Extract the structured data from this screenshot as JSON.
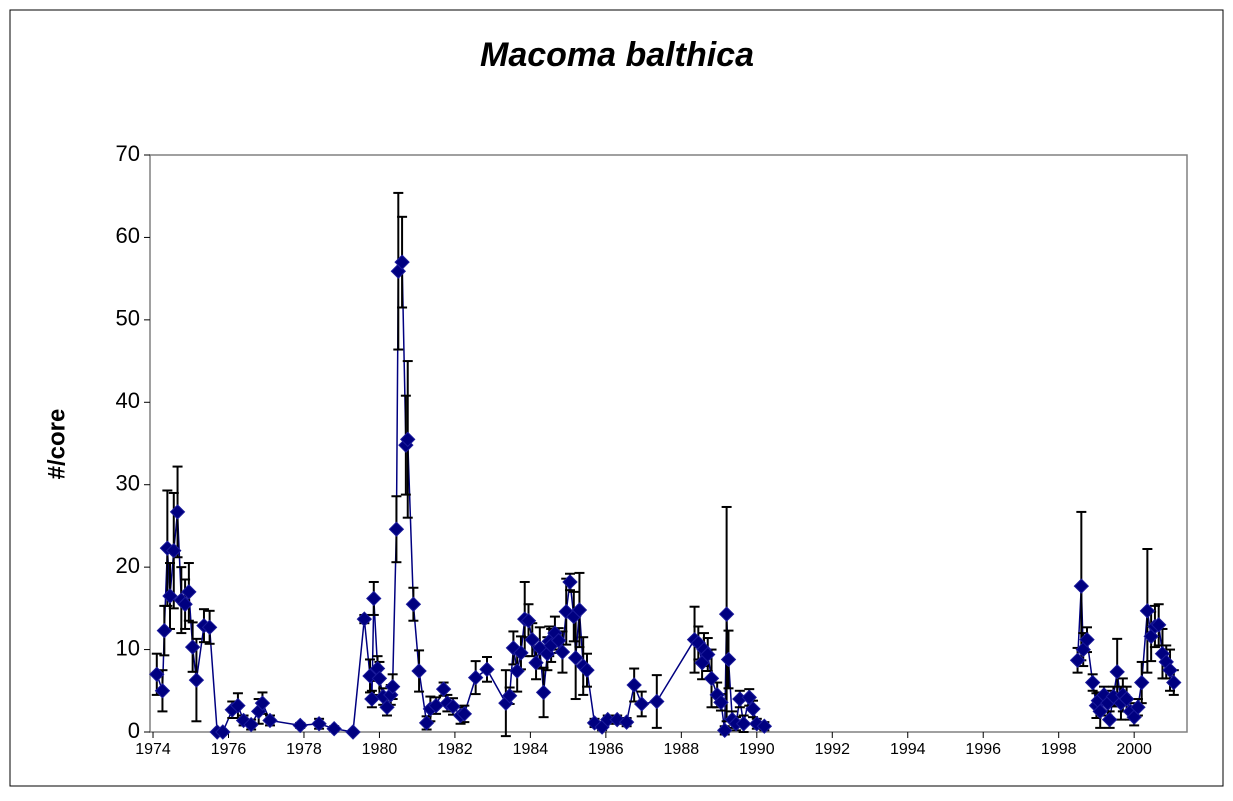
{
  "chart_data": {
    "type": "line",
    "title": "Macoma balthica",
    "y_label": "#/core",
    "color": "#000080",
    "xlim": [
      1973.92,
      2001.4
    ],
    "ylim": [
      0,
      70
    ],
    "xticks": [
      1974,
      1976,
      1978,
      1980,
      1982,
      1984,
      1986,
      1988,
      1990,
      1992,
      1994,
      1996,
      1998,
      2000
    ],
    "yticks": [
      0,
      10,
      20,
      30,
      40,
      50,
      60,
      70
    ],
    "x": [
      1974.1,
      1974.25,
      1974.3,
      1974.38,
      1974.45,
      1974.55,
      1974.65,
      1974.75,
      1974.85,
      1974.95,
      1975.05,
      1975.15,
      1975.35,
      1975.5,
      1975.7,
      1975.85,
      1976.1,
      1976.25,
      1976.4,
      1976.6,
      1976.8,
      1976.9,
      1977.1,
      1977.9,
      1978.4,
      1978.8,
      1979.3,
      1979.6,
      1979.75,
      1979.8,
      1979.85,
      1979.95,
      1980.0,
      1980.1,
      1980.2,
      1980.3,
      1980.35,
      1980.45,
      1980.5,
      1980.6,
      1980.7,
      1980.75,
      1980.9,
      1981.05,
      1981.25,
      1981.35,
      1981.5,
      1981.7,
      1981.8,
      1981.95,
      1982.15,
      1982.25,
      1982.55,
      1982.85,
      1983.35,
      1983.45,
      1983.55,
      1983.65,
      1983.75,
      1983.85,
      1983.95,
      1984.05,
      1984.15,
      1984.25,
      1984.35,
      1984.45,
      1984.5,
      1984.55,
      1984.65,
      1984.75,
      1984.85,
      1984.95,
      1985.05,
      1985.15,
      1985.2,
      1985.3,
      1985.4,
      1985.5,
      1985.7,
      1985.9,
      1986.05,
      1986.3,
      1986.55,
      1986.75,
      1986.95,
      1987.35,
      1988.35,
      1988.45,
      1988.55,
      1988.6,
      1988.7,
      1988.8,
      1988.95,
      1989.05,
      1989.15,
      1989.2,
      1989.25,
      1989.35,
      1989.45,
      1989.55,
      1989.65,
      1989.8,
      1989.9,
      1990.0,
      1990.2,
      1994.0,
      1998.5,
      1998.6,
      1998.65,
      1998.75,
      1998.9,
      1999.0,
      1999.05,
      1999.1,
      1999.2,
      1999.3,
      1999.35,
      1999.45,
      1999.55,
      1999.65,
      1999.7,
      1999.8,
      1999.9,
      2000.0,
      2000.1,
      2000.2,
      2000.35,
      2000.45,
      2000.55,
      2000.65,
      2000.75,
      2000.85,
      2000.95,
      2001.05
    ],
    "values": [
      7,
      5,
      12.3,
      22.3,
      16.5,
      22,
      26.7,
      16,
      15.5,
      17,
      10.3,
      6.3,
      12.9,
      12.7,
      0,
      0,
      2.7,
      3.2,
      1.4,
      0.9,
      2.5,
      3.5,
      1.4,
      0.8,
      1,
      0.4,
      0,
      13.7,
      6.8,
      4,
      16.2,
      7.7,
      6.5,
      4.3,
      3,
      4.5,
      5.5,
      24.6,
      55.9,
      57,
      34.8,
      35.5,
      15.5,
      7.4,
      1.1,
      2.8,
      3.2,
      5.2,
      3.5,
      3.1,
      2,
      2.2,
      6.6,
      7.6,
      3.5,
      4.4,
      10.2,
      7.4,
      9.6,
      13.7,
      13.5,
      11.2,
      8.4,
      10.2,
      4.8,
      9.5,
      11,
      10.5,
      12,
      11.1,
      9.7,
      14.6,
      18.2,
      14,
      9,
      14.8,
      8,
      7.5,
      1.1,
      0.6,
      1.5,
      1.5,
      1.2,
      5.7,
      3.4,
      3.7,
      11.2,
      10.8,
      8.4,
      10,
      9.4,
      6.5,
      4.5,
      3.6,
      0.2,
      14.3,
      8.8,
      1.5,
      1,
      4,
      1,
      4.2,
      2.8,
      1,
      0.7,
      null,
      8.7,
      17.7,
      10,
      11.2,
      6,
      3.2,
      3.8,
      2.5,
      4.5,
      3.5,
      1.5,
      4.3,
      7.3,
      3.5,
      4.5,
      4,
      2.5,
      1.8,
      3,
      6,
      14.7,
      11.6,
      12.8,
      13,
      9.5,
      8.5,
      7.5,
      6
    ],
    "errors": [
      2.5,
      2.5,
      3,
      7,
      4,
      7,
      5.5,
      4,
      3,
      3.5,
      3,
      5,
      2,
      2,
      0,
      0,
      1,
      1.5,
      0.6,
      0.6,
      1.5,
      1.3,
      0.6,
      0.3,
      0.6,
      0.3,
      0,
      0.5,
      2,
      1,
      2,
      1.5,
      2,
      1,
      1,
      1.2,
      1.5,
      4,
      9.5,
      5.5,
      6,
      9.5,
      2,
      2.5,
      0.8,
      1.5,
      1,
      0.8,
      1,
      1,
      1,
      1,
      2,
      1.5,
      4,
      1,
      2,
      2.5,
      2,
      4.5,
      2,
      2,
      2,
      2.5,
      3,
      2,
      1.8,
      2,
      2,
      1.5,
      2.5,
      4,
      1,
      3,
      5,
      4.5,
      3.5,
      2,
      0.5,
      0.4,
      0.5,
      0.5,
      0.5,
      2,
      1.5,
      3.2,
      4,
      2,
      2,
      2,
      2,
      3.5,
      1.5,
      1,
      0.5,
      13,
      3.5,
      1,
      0.8,
      1,
      1,
      1,
      1,
      0.6,
      0.5,
      null,
      1.5,
      9,
      2,
      1.5,
      1,
      1.5,
      1,
      2,
      1,
      1.5,
      1,
      1.2,
      4,
      2,
      2,
      1.5,
      1,
      1,
      1,
      2.5,
      7.5,
      3,
      2.5,
      2.5,
      3,
      2,
      2.5,
      1.5
    ]
  }
}
